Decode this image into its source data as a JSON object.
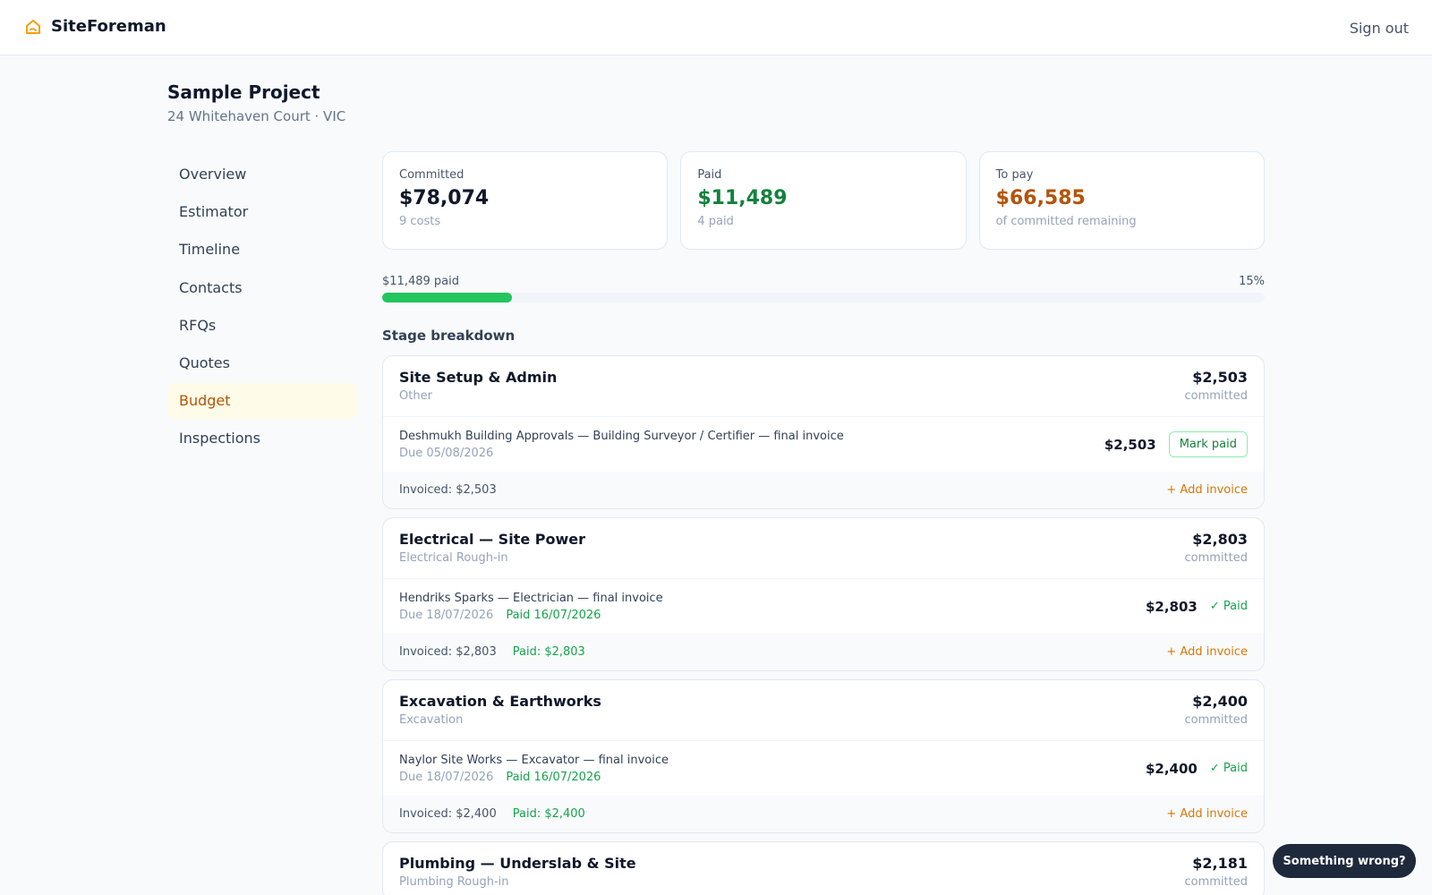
{
  "app": {
    "name": "SiteForeman",
    "signout_label": "Sign out"
  },
  "project": {
    "title": "Sample Project",
    "address": "24 Whitehaven Court · VIC"
  },
  "nav": {
    "items": [
      {
        "label": "Overview"
      },
      {
        "label": "Estimator"
      },
      {
        "label": "Timeline"
      },
      {
        "label": "Contacts"
      },
      {
        "label": "RFQs"
      },
      {
        "label": "Quotes"
      },
      {
        "label": "Budget"
      },
      {
        "label": "Inspections"
      }
    ],
    "active": "Budget"
  },
  "summary": {
    "committed": {
      "label": "Committed",
      "value": "$78,074",
      "sub": "9 costs"
    },
    "paid": {
      "label": "Paid",
      "value": "$11,489",
      "sub": "4 paid"
    },
    "topay": {
      "label": "To pay",
      "value": "$66,585",
      "sub": "of committed remaining"
    }
  },
  "progress": {
    "label": "$11,489 paid",
    "percent_label": "15%",
    "fraction": 0.147
  },
  "breakdown": {
    "title": "Stage breakdown",
    "committed_label": "committed",
    "add_invoice_label": "+ Add invoice",
    "stages": [
      {
        "name": "Site Setup & Admin",
        "category": "Other",
        "amount": "$2,503",
        "line": {
          "desc": "Deshmukh Building Approvals — Building Surveyor / Certifier — final invoice",
          "due": "Due 05/08/2026",
          "amount": "$2,503",
          "action": "Mark paid"
        },
        "invoiced": "Invoiced: $2,503"
      },
      {
        "name": "Electrical — Site Power",
        "category": "Electrical Rough-in",
        "amount": "$2,803",
        "line": {
          "desc": "Hendriks Sparks — Electrician — final invoice",
          "due": "Due 18/07/2026",
          "paid_on": "Paid 16/07/2026",
          "amount": "$2,803",
          "status": "✓ Paid"
        },
        "invoiced": "Invoiced: $2,803",
        "paid_total": "Paid: $2,803"
      },
      {
        "name": "Excavation & Earthworks",
        "category": "Excavation",
        "amount": "$2,400",
        "line": {
          "desc": "Naylor Site Works — Excavator — final invoice",
          "due": "Due 18/07/2026",
          "paid_on": "Paid 16/07/2026",
          "amount": "$2,400",
          "status": "✓ Paid"
        },
        "invoiced": "Invoiced: $2,400",
        "paid_total": "Paid: $2,400"
      },
      {
        "name": "Plumbing — Underslab & Site",
        "category": "Plumbing Rough-in",
        "amount": "$2,181"
      }
    ]
  },
  "feedback_label": "Something wrong?",
  "colors": {
    "accent": "#f59e0b",
    "paid": "#15803d",
    "topay": "#b45309",
    "progress": "#22c55e"
  }
}
